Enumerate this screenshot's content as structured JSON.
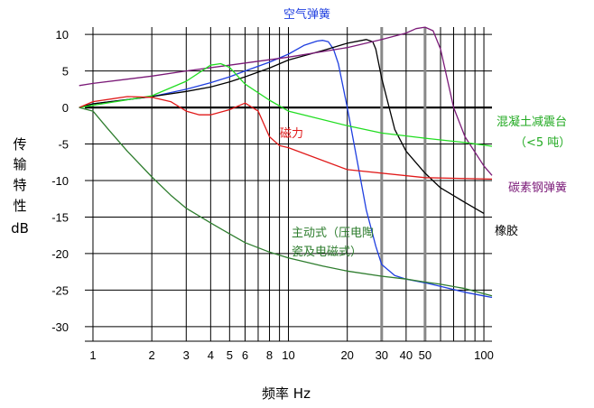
{
  "chart_data": {
    "type": "line",
    "x_scale": "log",
    "xlabel": "频率 Hz",
    "ylabel": [
      "传",
      "输",
      "特",
      "性",
      "dB"
    ],
    "xlim": [
      0.8,
      110
    ],
    "ylim": [
      -32,
      12
    ],
    "x_ticks": [
      1,
      2,
      3,
      4,
      5,
      6,
      8,
      10,
      20,
      30,
      40,
      50,
      100
    ],
    "x_tick_labels": [
      "1",
      "2",
      "3",
      "4",
      "5",
      "6",
      "8",
      "10",
      "20",
      "30",
      "40",
      "50",
      "100"
    ],
    "y_ticks": [
      10,
      5,
      0,
      -5,
      -10,
      -15,
      -20,
      -25,
      -30
    ],
    "y_tick_labels": [
      "10",
      "5",
      "0",
      "-5",
      "-10",
      "-15",
      "-20",
      "-25",
      "-30"
    ],
    "major_vlines": [
      1,
      2,
      3,
      4,
      5,
      6,
      7,
      8,
      9,
      10,
      20,
      30,
      40,
      50,
      60,
      70,
      80,
      90,
      100
    ],
    "thick_vlines": [
      30,
      50
    ],
    "grid": true,
    "series": [
      {
        "name": "空气弹簧",
        "color": "#1f3fe0",
        "x": [
          0.85,
          1,
          2,
          3,
          4,
          5,
          6,
          8,
          10,
          12,
          14,
          15,
          16,
          17,
          18,
          20,
          22,
          25,
          28,
          30,
          35,
          40,
          50,
          60,
          80,
          100,
          110
        ],
        "y": [
          0,
          0.5,
          1.5,
          2.5,
          3.4,
          4.2,
          5,
          6.2,
          7.3,
          8.5,
          9.1,
          9.2,
          9.0,
          8.0,
          6.0,
          0,
          -6,
          -14,
          -19,
          -21.5,
          -23,
          -23.5,
          -24,
          -24.5,
          -25.3,
          -25.8,
          -26
        ]
      },
      {
        "name": "橡胶",
        "color": "#000000",
        "x": [
          0.85,
          1,
          2,
          3,
          4,
          5,
          6,
          8,
          10,
          15,
          20,
          25,
          27,
          28,
          30,
          35,
          40,
          50,
          60,
          80,
          100
        ],
        "y": [
          0,
          0.5,
          1.5,
          2.2,
          2.8,
          3.5,
          4.2,
          5.4,
          6.5,
          7.8,
          8.8,
          9.3,
          9.0,
          8.0,
          4.0,
          -3,
          -6,
          -9,
          -11,
          -13,
          -14.5
        ]
      },
      {
        "name": "碳素钢弹簧",
        "color": "#7b1a78",
        "x": [
          0.85,
          1,
          2,
          3,
          5,
          10,
          20,
          30,
          40,
          45,
          50,
          55,
          60,
          70,
          80,
          100,
          110
        ],
        "y": [
          3,
          3.3,
          4.3,
          5.0,
          5.8,
          6.9,
          8.2,
          9.3,
          10.2,
          10.8,
          11.0,
          10.5,
          8.0,
          0,
          -4,
          -8,
          -9.3
        ]
      },
      {
        "name": "混凝土减震台（<5吨）",
        "color": "#22dd22",
        "x": [
          0.85,
          1,
          2,
          3,
          4,
          4.5,
          5,
          6,
          8,
          10,
          20,
          30,
          50,
          80,
          110
        ],
        "y": [
          0,
          0.3,
          1.6,
          3.6,
          5.8,
          6.0,
          5.5,
          3.2,
          1.0,
          -0.5,
          -2.5,
          -3.5,
          -4.2,
          -4.8,
          -5.3
        ]
      },
      {
        "name": "磁力",
        "color": "#e01a1a",
        "x": [
          0.85,
          1,
          1.5,
          2,
          2.5,
          3,
          3.5,
          4,
          5,
          6,
          7,
          8,
          9,
          10,
          20,
          50,
          110
        ],
        "y": [
          0,
          0.8,
          1.5,
          1.4,
          0.8,
          -0.5,
          -1.0,
          -1.0,
          -0.3,
          0.6,
          -0.5,
          -4.0,
          -5.2,
          -5.5,
          -8.5,
          -9.6,
          -9.8
        ]
      },
      {
        "name": "主动式（压电陶瓷及电磁式）",
        "color": "#2e7d2e",
        "x": [
          0.85,
          1,
          1.2,
          1.5,
          2,
          2.5,
          3,
          4,
          5,
          6,
          8,
          10,
          15,
          20,
          30,
          40,
          50,
          60,
          80,
          100,
          110
        ],
        "y": [
          0,
          -0.5,
          -3.0,
          -6.0,
          -9.5,
          -12,
          -13.8,
          -15.8,
          -17.3,
          -18.5,
          -19.8,
          -20.6,
          -21.7,
          -22.4,
          -23.1,
          -23.5,
          -23.9,
          -24.2,
          -24.8,
          -25.5,
          -25.8
        ]
      }
    ],
    "annotations": [
      {
        "text": "空气弹簧",
        "color": "#1f3fe0"
      },
      {
        "text": "混凝土减震台",
        "color": "#22aa22"
      },
      {
        "text": "（<5 吨）",
        "color": "#22aa22"
      },
      {
        "text": "碳素钢弹簧",
        "color": "#7b1a78"
      },
      {
        "text": "橡胶",
        "color": "#000000"
      },
      {
        "text": "磁力",
        "color": "#e01a1a"
      },
      {
        "text": "主动式（压电陶",
        "color": "#2e7d2e"
      },
      {
        "text": "瓷及电磁式）",
        "color": "#2e7d2e"
      }
    ]
  }
}
